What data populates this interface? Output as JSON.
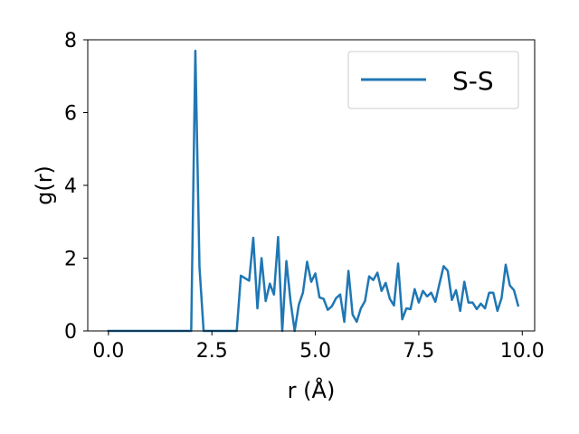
{
  "chart_data": {
    "type": "line",
    "xlabel": "r (Å)",
    "ylabel": "g(r)",
    "xlim": [
      -0.5,
      10.3
    ],
    "ylim": [
      0,
      8
    ],
    "xticks": [
      0.0,
      2.5,
      5.0,
      7.5,
      10.0
    ],
    "xtick_labels": [
      "0.0",
      "2.5",
      "5.0",
      "7.5",
      "10.0"
    ],
    "yticks": [
      0,
      2,
      4,
      6,
      8
    ],
    "ytick_labels": [
      "0",
      "2",
      "4",
      "6",
      "8"
    ],
    "grid": false,
    "legend_position": "top-right",
    "series": [
      {
        "name": "S-S",
        "color": "#1f77b4",
        "x": [
          0.0,
          0.1,
          0.2,
          0.3,
          0.4,
          0.5,
          0.6,
          0.7,
          0.8,
          0.9,
          1.0,
          1.1,
          1.2,
          1.3,
          1.4,
          1.5,
          1.6,
          1.7,
          1.8,
          1.9,
          2.0,
          2.1,
          2.2,
          2.3,
          2.4,
          2.5,
          2.6,
          2.7,
          2.8,
          2.9,
          3.0,
          3.1,
          3.2,
          3.3,
          3.4,
          3.5,
          3.6,
          3.7,
          3.8,
          3.9,
          4.0,
          4.1,
          4.2,
          4.3,
          4.4,
          4.5,
          4.6,
          4.7,
          4.8,
          4.9,
          5.0,
          5.1,
          5.2,
          5.3,
          5.4,
          5.5,
          5.6,
          5.7,
          5.8,
          5.9,
          6.0,
          6.1,
          6.2,
          6.3,
          6.4,
          6.5,
          6.6,
          6.7,
          6.8,
          6.9,
          7.0,
          7.1,
          7.2,
          7.3,
          7.4,
          7.5,
          7.6,
          7.7,
          7.8,
          7.9,
          8.0,
          8.1,
          8.2,
          8.3,
          8.4,
          8.5,
          8.6,
          8.7,
          8.8,
          8.9,
          9.0,
          9.1,
          9.2,
          9.3,
          9.4,
          9.5,
          9.6,
          9.7,
          9.8,
          9.9
        ],
        "values": [
          0,
          0,
          0,
          0,
          0,
          0,
          0,
          0,
          0,
          0,
          0,
          0,
          0,
          0,
          0,
          0,
          0,
          0,
          0,
          0,
          0,
          7.7,
          1.75,
          0,
          0,
          0,
          0,
          0,
          0,
          0,
          0,
          0,
          1.52,
          1.45,
          1.38,
          2.56,
          0.62,
          2.0,
          0.82,
          1.3,
          1.0,
          2.58,
          0.0,
          1.92,
          0.82,
          0.0,
          0.72,
          1.05,
          1.9,
          1.35,
          1.58,
          0.92,
          0.88,
          0.58,
          0.68,
          0.9,
          1.0,
          0.25,
          1.65,
          0.45,
          0.25,
          0.62,
          0.82,
          1.5,
          1.4,
          1.6,
          1.1,
          1.32,
          0.88,
          0.7,
          1.85,
          0.32,
          0.62,
          0.6,
          1.15,
          0.78,
          1.1,
          0.95,
          1.05,
          0.8,
          1.3,
          1.78,
          1.65,
          0.85,
          1.12,
          0.55,
          1.35,
          0.78,
          0.78,
          0.6,
          0.75,
          0.62,
          1.05,
          1.05,
          0.55,
          0.9,
          1.82,
          1.25,
          1.12,
          0.7
        ]
      }
    ]
  }
}
